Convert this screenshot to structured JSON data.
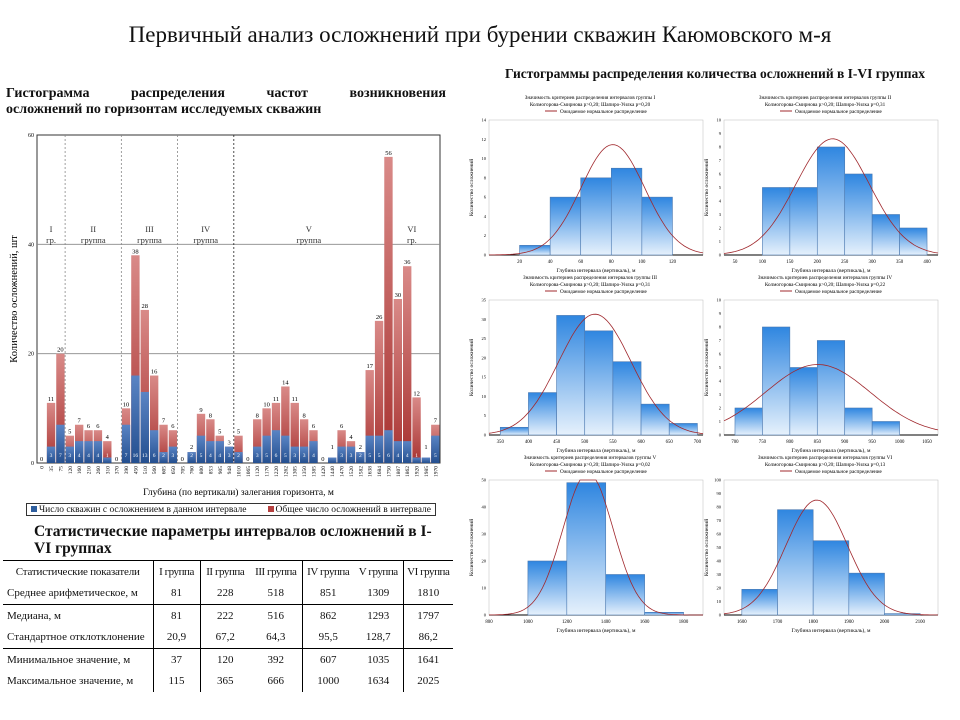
{
  "slide_title": "Первичный анализ осложнений при бурении скважин Каюмовского м-я",
  "left_title": {
    "line1": "Гистограмма распределения частот возникновения",
    "line2": "осложнений по горизонтам исследуемых скважин"
  },
  "right_title": "Гистограммы распределения количества осложнений в I-VI группах",
  "legend": {
    "blue": "Число скважин с осложнением в данном интервале",
    "red": "Общее число осложнений в интервале"
  },
  "colors": {
    "blue": "#2e5e9e",
    "red": "#b5403f",
    "hist_top": "#2f86e0",
    "hist_bottom": "#e6f1fc",
    "curve": "#a0282d"
  },
  "stats": {
    "title": "Статистические параметры интервалов осложнений в I-VI группах",
    "header": [
      "Статистические показатели",
      "I группа",
      "II группа",
      "III группа",
      "IV группа",
      "V группа",
      "VI группа"
    ],
    "rows": [
      [
        "Среднее арифметическое, м",
        "81",
        "228",
        "518",
        "851",
        "1309",
        "1810"
      ],
      [
        "Медиана, м",
        "81",
        "222",
        "516",
        "862",
        "1293",
        "1797"
      ],
      [
        "Стандартное отклотклонение",
        "20,9",
        "67,2",
        "64,3",
        "95,5",
        "128,7",
        "86,2"
      ],
      [
        "Минимальное значение, м",
        "37",
        "120",
        "392",
        "607",
        "1035",
        "1641"
      ],
      [
        "Максимальное значение, м",
        "115",
        "365",
        "666",
        "1000",
        "1634",
        "2025"
      ]
    ]
  },
  "chart_data": [
    {
      "type": "bar",
      "stacked": true,
      "title": "Гистограмма распределения частот возникновения осложнений по горизонтам исследуемых скважин",
      "xlabel": "Глубина (по вертикали) залегания горизонта, м",
      "ylabel": "Количество осложнений, шт",
      "ylim": [
        0,
        60
      ],
      "yticks": [
        0,
        20,
        40,
        60
      ],
      "categories": [
        "0",
        "35",
        "75",
        "120",
        "160",
        "210",
        "260",
        "310",
        "370",
        "390",
        "450",
        "510",
        "560",
        "605",
        "650",
        "705",
        "760",
        "800",
        "853",
        "905",
        "948",
        "1010",
        "1065",
        "1120",
        "1170",
        "1220",
        "1262",
        "1305",
        "1350",
        "1385",
        "1420",
        "1440",
        "1470",
        "1520",
        "1582",
        "1638",
        "1684",
        "1750",
        "1807",
        "1862",
        "1920",
        "1985",
        "1970"
      ],
      "series": [
        {
          "name": "Число скважин с осложнением в данном интервале",
          "values": [
            0,
            3,
            7,
            3,
            4,
            4,
            4,
            1,
            0,
            7,
            16,
            13,
            6,
            2,
            3,
            0,
            2,
            5,
            4,
            4,
            3,
            2,
            0,
            3,
            5,
            6,
            5,
            3,
            3,
            4,
            0,
            1,
            3,
            3,
            2,
            5,
            5,
            6,
            4,
            4,
            1,
            1,
            5
          ]
        },
        {
          "name": "Общее число осложнений в интервале",
          "values": [
            0,
            11,
            20,
            5,
            7,
            6,
            6,
            4,
            0,
            10,
            38,
            28,
            16,
            7,
            6,
            0,
            2,
            9,
            8,
            5,
            3,
            5,
            0,
            8,
            10,
            11,
            14,
            11,
            8,
            6,
            0,
            1,
            6,
            4,
            2,
            17,
            26,
            56,
            30,
            36,
            12,
            1,
            7
          ]
        }
      ],
      "groups": [
        {
          "label1": "I",
          "label2": "гр.",
          "from": 0,
          "to": 2
        },
        {
          "label1": "II",
          "label2": "группа",
          "from": 3,
          "to": 8
        },
        {
          "label1": "III",
          "label2": "группа",
          "from": 9,
          "to": 14
        },
        {
          "label1": "IV",
          "label2": "группа",
          "from": 15,
          "to": 20
        },
        {
          "label1": "V",
          "label2": "группа",
          "from": 21,
          "to": 36
        },
        {
          "label1": "VI",
          "label2": "гр.",
          "from": 37,
          "to": 42
        }
      ],
      "grid": true
    },
    {
      "type": "bar",
      "group": "I",
      "title": "Значимость критериев распределения интервалов группы I",
      "subtitle": "Колмогорова-Смирнова p>0,20; Шапиро-Уилка p=0,20",
      "legend": "Ожидаемое нормальное распределение",
      "xlabel": "Глубина интервала (вертикаль), м",
      "ylabel": "Количество осложнений",
      "xlim": [
        0,
        140
      ],
      "xticks": [
        20,
        40,
        60,
        80,
        100,
        120
      ],
      "ylim": [
        0,
        14
      ],
      "yticks": [
        0,
        2,
        4,
        6,
        8,
        10,
        12,
        14
      ],
      "bins": [
        [
          20,
          40,
          1
        ],
        [
          40,
          60,
          6
        ],
        [
          60,
          80,
          8
        ],
        [
          80,
          100,
          9
        ],
        [
          100,
          120,
          6
        ]
      ],
      "normal": {
        "mean": 81,
        "sd": 20.9
      }
    },
    {
      "type": "bar",
      "group": "II",
      "title": "Значимость критериев распределения интервалов группы II",
      "subtitle": "Колмогорова-Смирнова p>0,20; Шапиро-Уилка p=0,31",
      "legend": "Ожидаемое нормальное распределение",
      "xlabel": "Глубина интервала (вертикаль), м",
      "ylabel": "Количество осложнений",
      "xlim": [
        30,
        420
      ],
      "xticks": [
        50,
        100,
        150,
        200,
        250,
        300,
        350,
        400
      ],
      "ylim": [
        0,
        10
      ],
      "yticks": [
        0,
        1,
        2,
        3,
        4,
        5,
        6,
        7,
        8,
        9,
        10
      ],
      "bins": [
        [
          100,
          150,
          5
        ],
        [
          150,
          200,
          5
        ],
        [
          200,
          250,
          8
        ],
        [
          250,
          300,
          6
        ],
        [
          300,
          350,
          3
        ],
        [
          350,
          400,
          2
        ]
      ],
      "normal": {
        "mean": 228,
        "sd": 67.2
      }
    },
    {
      "type": "bar",
      "group": "III",
      "title": "Значимость критериев распределения интервалов группы III",
      "subtitle": "Колмогорова-Смирнова p>0,20; Шапиро-Уилка p=0,31",
      "legend": "Ожидаемое нормальное распределение",
      "xlabel": "Глубина интервала (вертикаль), м",
      "ylabel": "Количество осложнений",
      "xlim": [
        330,
        710
      ],
      "xticks": [
        350,
        400,
        450,
        500,
        550,
        600,
        650,
        700
      ],
      "ylim": [
        0,
        35
      ],
      "yticks": [
        0,
        5,
        10,
        15,
        20,
        25,
        30,
        35
      ],
      "bins": [
        [
          350,
          400,
          2
        ],
        [
          400,
          450,
          11
        ],
        [
          450,
          500,
          31
        ],
        [
          500,
          550,
          27
        ],
        [
          550,
          600,
          19
        ],
        [
          600,
          650,
          8
        ],
        [
          650,
          700,
          3
        ]
      ],
      "normal": {
        "mean": 518,
        "sd": 64.3
      }
    },
    {
      "type": "bar",
      "group": "IV",
      "title": "Значимость критериев распределения интервалов группы IV",
      "subtitle": "Колмогорова-Смирнова p>0,20; Шапиро-Уилка p=0,22",
      "legend": "Ожидаемое нормальное распределение",
      "xlabel": "Глубина интервала (вертикаль), м",
      "ylabel": "Количество осложнений",
      "xlim": [
        680,
        1070
      ],
      "xticks": [
        700,
        750,
        800,
        850,
        900,
        950,
        1000,
        1050
      ],
      "ylim": [
        0,
        10
      ],
      "yticks": [
        0,
        1,
        2,
        3,
        4,
        5,
        6,
        7,
        8,
        9,
        10
      ],
      "bins": [
        [
          700,
          750,
          2
        ],
        [
          750,
          800,
          8
        ],
        [
          800,
          850,
          5
        ],
        [
          850,
          900,
          7
        ],
        [
          900,
          950,
          2
        ],
        [
          950,
          1000,
          1
        ]
      ],
      "normal": {
        "mean": 851,
        "sd": 95.5
      }
    },
    {
      "type": "bar",
      "group": "V",
      "title": "Значимость критериев распределения интервалов группы V",
      "subtitle": "Колмогорова-Смирнова p>0,20; Шапиро-Уилка p=0,02",
      "legend": "Ожидаемое нормальное распределение",
      "xlabel": "Глубина интервала (вертикаль), м",
      "ylabel": "Количество осложнений",
      "xlim": [
        800,
        1900
      ],
      "xticks": [
        800,
        1000,
        1200,
        1400,
        1600,
        1800
      ],
      "ylim": [
        0,
        50
      ],
      "yticks": [
        0,
        10,
        20,
        30,
        40,
        50
      ],
      "bins": [
        [
          1000,
          1200,
          20
        ],
        [
          1200,
          1400,
          49
        ],
        [
          1400,
          1600,
          15
        ],
        [
          1600,
          1800,
          1
        ]
      ],
      "normal": {
        "mean": 1309,
        "sd": 128.7
      }
    },
    {
      "type": "bar",
      "group": "VI",
      "title": "Значимость критериев распределения интервалов группы VI",
      "subtitle": "Колмогорова-Смирнова p>0,20; Шапиро-Уилка p=0,13",
      "legend": "Ожидаемое нормальное распределение",
      "xlabel": "Глубина интервала (вертикаль), м",
      "ylabel": "Количество осложнений",
      "xlim": [
        1550,
        2150
      ],
      "xticks": [
        1600,
        1700,
        1800,
        1900,
        2000,
        2100
      ],
      "ylim": [
        0,
        100
      ],
      "yticks": [
        0,
        10,
        20,
        30,
        40,
        50,
        60,
        70,
        80,
        90,
        100
      ],
      "bins": [
        [
          1600,
          1700,
          19
        ],
        [
          1700,
          1800,
          78
        ],
        [
          1800,
          1900,
          55
        ],
        [
          1900,
          2000,
          31
        ],
        [
          2000,
          2100,
          1
        ]
      ],
      "normal": {
        "mean": 1810,
        "sd": 86.2
      }
    }
  ]
}
